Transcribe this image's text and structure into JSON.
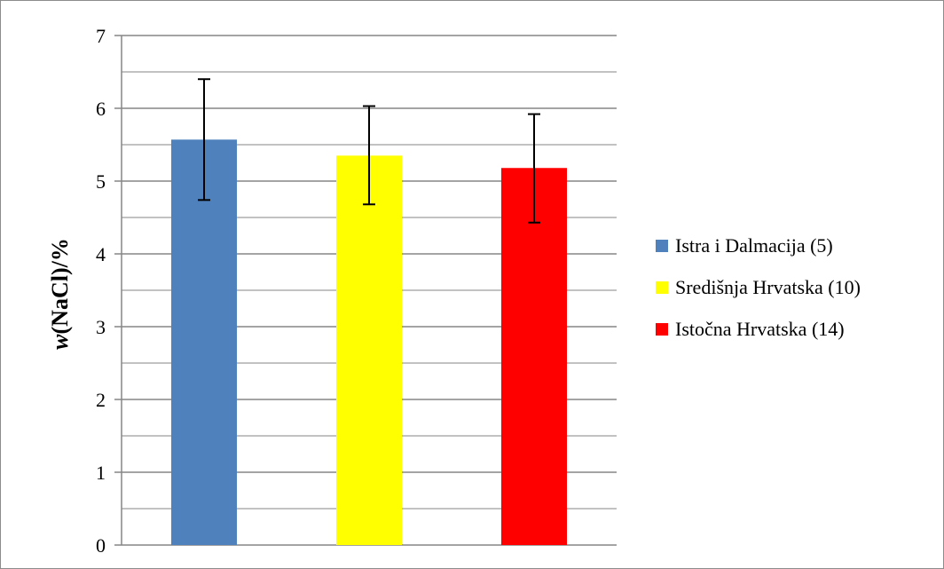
{
  "chart_data": {
    "type": "bar",
    "ylabel_italic": "w",
    "ylabel_rest": "(NaCl)/%",
    "ylim": [
      0,
      7
    ],
    "major_step": 1,
    "minor_step": 0.5,
    "grid": true,
    "legend_position": "right",
    "y_ticks": [
      "0",
      "1",
      "2",
      "3",
      "4",
      "5",
      "6",
      "7"
    ],
    "series": [
      {
        "name": "Istra i Dalmacija (5)",
        "value": 5.57,
        "error_low": 4.74,
        "error_high": 6.4,
        "color": "#4f81bd"
      },
      {
        "name": "Središnja Hrvatska (10)",
        "value": 5.35,
        "error_low": 4.68,
        "error_high": 6.03,
        "color": "#ffff00"
      },
      {
        "name": "Istočna Hrvatska (14)",
        "value": 5.18,
        "error_low": 4.43,
        "error_high": 5.92,
        "color": "#ff0000"
      }
    ]
  }
}
